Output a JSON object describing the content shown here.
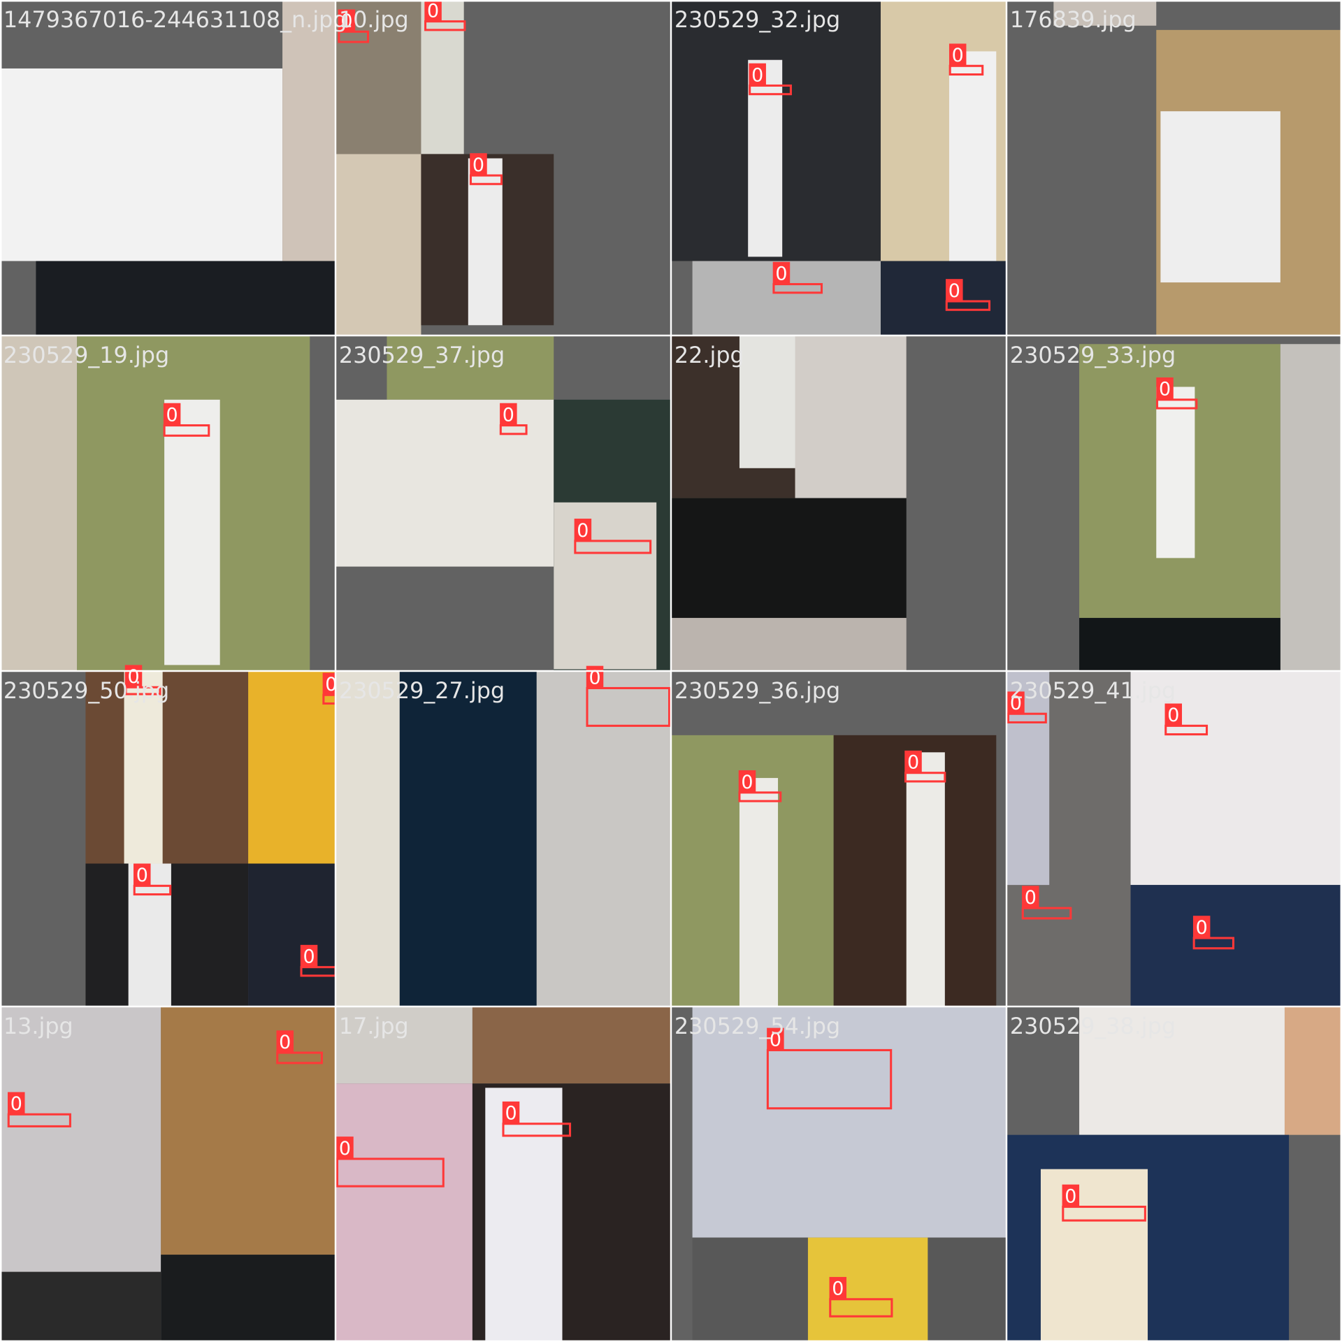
{
  "tiles": [
    {
      "name": "1479367016-244631108_n.jpg",
      "boxes": []
    },
    {
      "name": "10.jpg",
      "boxes": [
        {
          "label": "0"
        },
        {
          "label": "0"
        },
        {
          "label": "0"
        }
      ]
    },
    {
      "name": "230529_32.jpg",
      "boxes": [
        {
          "label": "0"
        },
        {
          "label": "0"
        },
        {
          "label": "0"
        },
        {
          "label": "0"
        }
      ]
    },
    {
      "name": "176839.jpg",
      "boxes": []
    },
    {
      "name": "230529_19.jpg",
      "boxes": [
        {
          "label": "0"
        }
      ]
    },
    {
      "name": "230529_37.jpg",
      "boxes": [
        {
          "label": "0"
        },
        {
          "label": "0"
        }
      ]
    },
    {
      "name": "22.jpg",
      "boxes": []
    },
    {
      "name": "230529_33.jpg",
      "boxes": [
        {
          "label": "0"
        }
      ]
    },
    {
      "name": "230529_50.jpg",
      "boxes": [
        {
          "label": "0"
        },
        {
          "label": "0"
        },
        {
          "label": "0"
        },
        {
          "label": "0"
        }
      ]
    },
    {
      "name": "230529_27.jpg",
      "boxes": [
        {
          "label": "0"
        }
      ]
    },
    {
      "name": "230529_36.jpg",
      "boxes": [
        {
          "label": "0"
        },
        {
          "label": "0"
        }
      ]
    },
    {
      "name": "230529_41.jpg",
      "boxes": [
        {
          "label": "0"
        },
        {
          "label": "0"
        },
        {
          "label": "0"
        },
        {
          "label": "0"
        }
      ]
    },
    {
      "name": "13.jpg",
      "boxes": [
        {
          "label": "0"
        },
        {
          "label": "0"
        }
      ]
    },
    {
      "name": "17.jpg",
      "boxes": [
        {
          "label": "0"
        },
        {
          "label": "0"
        }
      ]
    },
    {
      "name": "230529_54.jpg",
      "boxes": [
        {
          "label": "0"
        },
        {
          "label": "0"
        }
      ]
    },
    {
      "name": "230529_38.jpg",
      "boxes": [
        {
          "label": "0"
        }
      ]
    }
  ]
}
